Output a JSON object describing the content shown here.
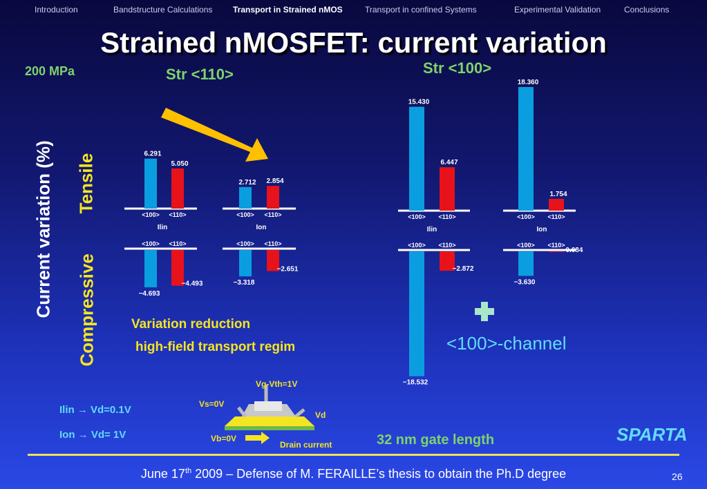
{
  "nav": {
    "items": [
      {
        "label": "Introduction",
        "active": false
      },
      {
        "label": "Bandstructure Calculations",
        "active": false
      },
      {
        "label": "Transport in Strained nMOS",
        "active": true
      },
      {
        "label": "Transport in confined Systems",
        "active": false
      },
      {
        "label": "Experimental Validation",
        "active": false
      },
      {
        "label": "Conclusions",
        "active": false
      }
    ]
  },
  "title": "Strained nMOSFET: current variation",
  "stress_label": "200 MPa",
  "str110_label": "Str <110>",
  "str100_label": "Str <100>",
  "y_axis_label": "Current variation (%)",
  "tensile_label": "Tensile",
  "compressive_label": "Compressive",
  "annotation_variation": "Variation reduction",
  "annotation_regime": "high-field transport regim",
  "annotation_channel": "<100>-channel",
  "ilin_def": "Ilin → Vd=0.1V",
  "ion_def": "Ion → Vd=  1V",
  "device": {
    "vg": "Vg-Vth=1V",
    "vs": "Vs=0V",
    "vd": "Vd",
    "vb": "Vb=0V",
    "drain": "Drain current"
  },
  "gate_length": "32 nm gate length",
  "sparta": "SPARTA",
  "footer": {
    "before": "June 17",
    "sup": "th",
    "after": " 2009 – Defense of M. FERAILLE’s thesis to obtain the Ph.D degree"
  },
  "page_number": "26",
  "colors": {
    "dir100": "#0a9ee0",
    "dir110": "#e8121a",
    "accent_green": "#7ed36a",
    "accent_yellow": "#f5e521",
    "accent_cyan": "#61dcf7",
    "arrow": "#ffc000"
  },
  "chart_data": [
    {
      "type": "bar",
      "name_label": "Str <110>",
      "categories": [
        "Ilin",
        "Ion"
      ],
      "series_names": [
        "<100>",
        "<110>"
      ],
      "tensile": {
        "<100>": [
          6.291,
          2.712
        ],
        "<110>": [
          5.05,
          2.854
        ]
      },
      "compressive": {
        "<100>": [
          -4.693,
          -3.318
        ],
        "<110>": [
          -4.493,
          -2.651
        ]
      }
    },
    {
      "type": "bar",
      "name_label": "Str <100>",
      "categories": [
        "Ilin",
        "Ion"
      ],
      "series_names": [
        "<100>",
        "<110>"
      ],
      "tensile": {
        "<100>": [
          15.43,
          18.36
        ],
        "<110>": [
          6.447,
          1.754
        ]
      },
      "compressive": {
        "<100>": [
          -18.532,
          -3.63
        ],
        "<110>": [
          -2.872,
          -0.084
        ]
      }
    }
  ]
}
